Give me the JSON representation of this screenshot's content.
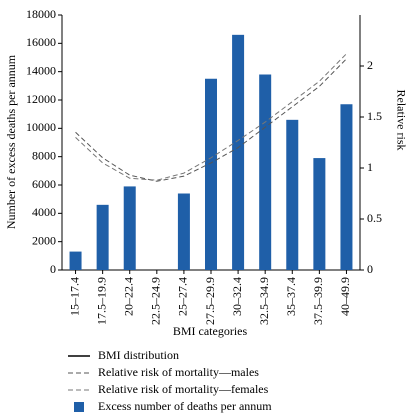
{
  "chart_data": {
    "type": "bar",
    "categories": [
      "15–17.4",
      "17.5–19.9",
      "20–22.4",
      "22.5–24.9",
      "25–27.4",
      "27.5–29.9",
      "30–32.4",
      "32.5–34.9",
      "35–37.4",
      "37.5–39.9",
      "40–49.9"
    ],
    "xlabel": "BMI categories",
    "ylabel": "Number of excess deaths per annum",
    "y2label": "Relative risk",
    "ylim": [
      0,
      18000
    ],
    "yticks": [
      0,
      2000,
      4000,
      6000,
      8000,
      10000,
      12000,
      14000,
      16000,
      18000
    ],
    "y2lim": [
      0,
      2.5
    ],
    "y2ticks": [
      0,
      0.5,
      1,
      1.5,
      2
    ],
    "extra_legend": {
      "name": "BMI distribution",
      "color": "#000000"
    },
    "series": [
      {
        "name": "Relative risk of mortality—males",
        "type": "line",
        "axis": "y2",
        "color": "#555555",
        "dash": "5,3",
        "values": [
          1.35,
          1.1,
          0.93,
          0.87,
          0.92,
          1.05,
          1.2,
          1.4,
          1.6,
          1.8,
          2.07
        ]
      },
      {
        "name": "Relative risk of mortality—females",
        "type": "line",
        "axis": "y2",
        "color": "#777777",
        "dash": "5,3",
        "values": [
          1.3,
          1.05,
          0.9,
          0.88,
          0.95,
          1.1,
          1.27,
          1.45,
          1.65,
          1.85,
          2.12
        ]
      },
      {
        "name": "Excess number of deaths per annum",
        "type": "bar",
        "color": "#1f5fa8",
        "values": [
          1300,
          4600,
          5900,
          null,
          5400,
          13500,
          16600,
          13800,
          10600,
          7900,
          11700
        ]
      }
    ]
  }
}
